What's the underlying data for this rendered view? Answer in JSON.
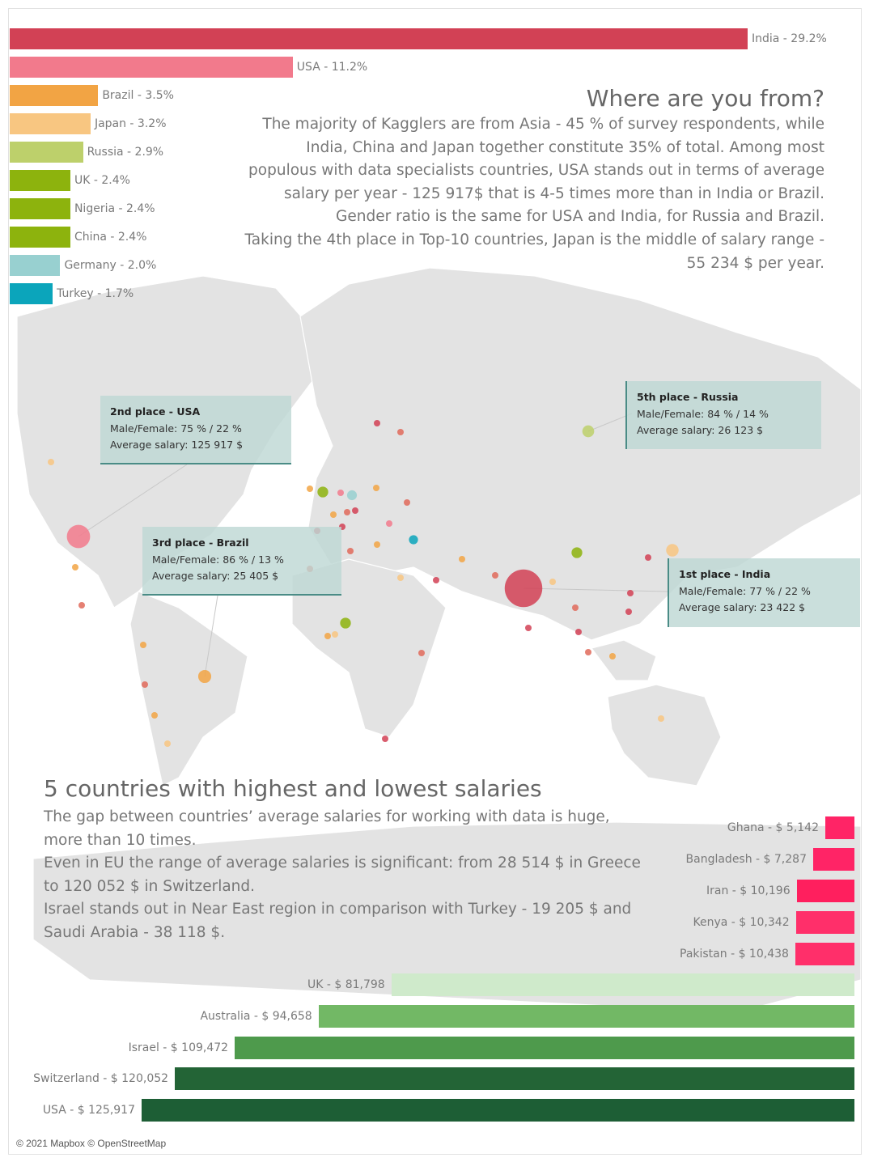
{
  "countries_chart": {
    "chart_data": {
      "type": "bar",
      "orientation": "horizontal",
      "unit": "% of survey respondents",
      "categories": [
        "India",
        "USA",
        "Brazil",
        "Japan",
        "Russia",
        "UK",
        "Nigeria",
        "China",
        "Germany",
        "Turkey"
      ],
      "values": [
        29.2,
        11.2,
        3.5,
        3.2,
        2.9,
        2.4,
        2.4,
        2.4,
        2.0,
        1.7
      ],
      "labels": [
        "India - 29.2%",
        "USA - 11.2%",
        "Brazil - 3.5%",
        "Japan - 3.2%",
        "Russia - 2.9%",
        "UK - 2.4%",
        "Nigeria - 2.4%",
        "China - 2.4%",
        "Germany - 2.0%",
        "Turkey - 1.7%"
      ],
      "colors": [
        "#d24155",
        "#f27a8c",
        "#f2a444",
        "#f8c681",
        "#bdd06b",
        "#8db30d",
        "#8db30d",
        "#8db30d",
        "#98d0d0",
        "#0ba5bb"
      ]
    }
  },
  "headline": {
    "title": "Where are you from?",
    "lines": [
      "The majority of Kagglers are from Asia - 45 % of survey respondents, while",
      "India, China and Japan together constitute 35% of total. Among most",
      "populous with data specialists countries, USA stands out in terms of average",
      "salary per year - 125 917$  that is 4-5 times more than in India or Brazil.",
      "Gender ratio is the same for USA and India, for Russia and Brazil.",
      "Taking the 4th place in Top-10 countries, Japan is the middle of salary range -",
      "55 234 $ per year."
    ]
  },
  "places": {
    "usa": {
      "title": "2nd place - USA",
      "gender": "Male/Female: 75 % / 22 %",
      "salary": "Average salary: 125 917 $"
    },
    "brazil": {
      "title": "3rd place - Brazil",
      "gender": "Male/Female: 86 % / 13 %",
      "salary": "Average salary: 25 405 $"
    },
    "russia": {
      "title": "5th place - Russia",
      "gender": "Male/Female: 84 % / 14 %",
      "salary": "Average salary: 26 123 $"
    },
    "india": {
      "title": "1st place - India",
      "gender": "Male/Female: 77 % / 22 %",
      "salary": "Average salary: 23 422 $"
    }
  },
  "salaries_text": {
    "title": "5 countries with highest and lowest salaries",
    "lines": [
      "The gap between countries’ average salaries for working with data is huge,",
      "more than 10 times.",
      "Even in EU the range of average salaries is significant: from 28 514 $ in Greece",
      "to 120 052 $ in Switzerland.",
      "Israel stands out in Near East region in comparison with Turkey - 19 205 $ and",
      "Saudi Arabia - 38 118 $."
    ]
  },
  "lowest_chart": {
    "chart_data": {
      "type": "bar",
      "orientation": "horizontal",
      "unit": "$ average salary per year",
      "categories": [
        "Ghana",
        "Bangladesh",
        "Iran",
        "Kenya",
        "Pakistan"
      ],
      "values": [
        5142,
        7287,
        10196,
        10342,
        10438
      ],
      "labels": [
        "Ghana - $ 5,142",
        "Bangladesh - $ 7,287",
        "Iran - $ 10,196",
        "Kenya - $ 10,342",
        "Pakistan - $ 10,438"
      ],
      "colors": [
        "#ff2466",
        "#ff2466",
        "#ff1f5e",
        "#ff2f6a",
        "#ff2f6a"
      ]
    }
  },
  "highest_chart": {
    "chart_data": {
      "type": "bar",
      "orientation": "horizontal",
      "unit": "$ average salary per year",
      "categories": [
        "UK",
        "Australia",
        "Israel",
        "Switzerland",
        "USA"
      ],
      "values": [
        81798,
        94658,
        109472,
        120052,
        125917
      ],
      "labels": [
        "UK - $ 81,798",
        "Australia - $ 94,658",
        "Israel - $ 109,472",
        "Switzerland - $ 120,052",
        "USA - $ 125,917"
      ],
      "colors": [
        "#cfeacb",
        "#72b865",
        "#4e9a4c",
        "#236436",
        "#1d5e35"
      ]
    }
  },
  "map_points": [
    {
      "country": "India",
      "value": 29.2,
      "color": "#d24155"
    },
    {
      "country": "USA",
      "value": 11.2,
      "color": "#f27a8c"
    },
    {
      "country": "Brazil",
      "value": 3.5,
      "color": "#f2a444"
    },
    {
      "country": "Japan",
      "value": 3.2,
      "color": "#f8c681"
    },
    {
      "country": "Russia",
      "value": 2.9,
      "color": "#bdd06b"
    },
    {
      "country": "UK",
      "value": 2.4,
      "color": "#8db30d"
    },
    {
      "country": "Nigeria",
      "value": 2.4,
      "color": "#8db30d"
    },
    {
      "country": "China",
      "value": 2.4,
      "color": "#8db30d"
    },
    {
      "country": "Germany",
      "value": 2.0,
      "color": "#98d0d0"
    },
    {
      "country": "Turkey",
      "value": 1.7,
      "color": "#0ba5bb"
    }
  ],
  "footer": {
    "copyright": "© 2021 Mapbox © OpenStreetMap"
  }
}
